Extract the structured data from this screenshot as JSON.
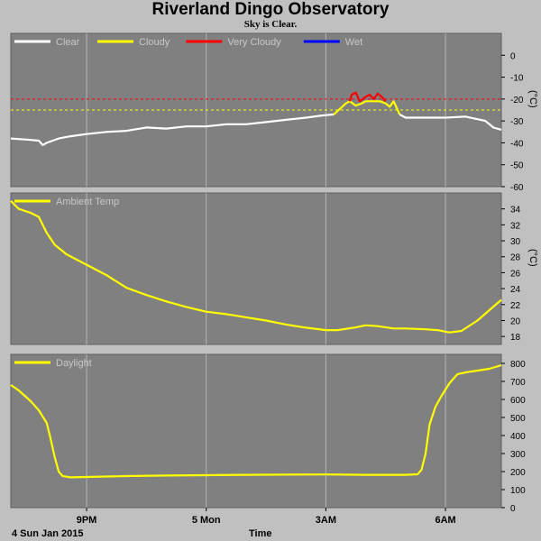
{
  "header": {
    "title": "Riverland Dingo Observatory",
    "status": "Sky is Clear."
  },
  "footer": {
    "date_label": "4 Sun Jan 2015",
    "time_label": "Time"
  },
  "colors": {
    "background": "#c0c0c0",
    "panel": "#808080",
    "grid": "#b4b4b4",
    "clear": "#ffffff",
    "cloudy": "#ffff00",
    "very_cloudy": "#ff0000",
    "wet": "#0000ff",
    "ambient": "#ffff00",
    "daylight": "#ffff00"
  },
  "chart_data": [
    {
      "type": "line",
      "name": "sky-temperature",
      "x_unit": "hours since 19:00",
      "x_ticks": [
        {
          "x": 2,
          "label": "9PM"
        },
        {
          "x": 5,
          "label": "5 Mon"
        },
        {
          "x": 8,
          "label": "3AM"
        },
        {
          "x": 11,
          "label": "6AM"
        }
      ],
      "xlim": [
        0.1,
        12.4
      ],
      "ylim": [
        -60,
        10
      ],
      "y_ticks": [
        0,
        -10,
        -20,
        -30,
        -40,
        -50,
        -60
      ],
      "ylabel": "(°C)",
      "threshold_lines": [
        {
          "value": -20,
          "color": "#ff0000"
        },
        {
          "value": -25,
          "color": "#ffff00"
        }
      ],
      "legend": [
        {
          "label": "Clear",
          "color": "#ffffff"
        },
        {
          "label": "Cloudy",
          "color": "#ffff00"
        },
        {
          "label": "Very Cloudy",
          "color": "#ff0000"
        },
        {
          "label": "Wet",
          "color": "#0000ff"
        }
      ],
      "series": [
        {
          "name": "Clear",
          "color": "#ffffff",
          "points": [
            [
              0.1,
              -38
            ],
            [
              0.5,
              -38.5
            ],
            [
              0.8,
              -39
            ],
            [
              0.9,
              -41
            ],
            [
              1.0,
              -40
            ],
            [
              1.3,
              -38
            ],
            [
              1.6,
              -37
            ],
            [
              2,
              -36
            ],
            [
              2.5,
              -35
            ],
            [
              3,
              -34.5
            ],
            [
              3.5,
              -33
            ],
            [
              4,
              -33.5
            ],
            [
              4.5,
              -32.5
            ],
            [
              5,
              -32.5
            ],
            [
              5.5,
              -31.5
            ],
            [
              6,
              -31.5
            ],
            [
              6.5,
              -30.5
            ],
            [
              7,
              -29.5
            ],
            [
              7.5,
              -28.5
            ],
            [
              7.9,
              -27.5
            ],
            [
              8.2,
              -27
            ]
          ]
        },
        {
          "name": "Cloudy",
          "color": "#ffff00",
          "points": [
            [
              8.2,
              -27
            ],
            [
              8.5,
              -22
            ],
            [
              8.6,
              -21
            ],
            [
              8.75,
              -23
            ],
            [
              8.9,
              -22
            ],
            [
              9.0,
              -21
            ],
            [
              9.35,
              -21
            ],
            [
              9.5,
              -22
            ],
            [
              9.6,
              -23.5
            ],
            [
              9.7,
              -21
            ],
            [
              9.85,
              -27
            ]
          ]
        },
        {
          "name": "Very Cloudy",
          "color": "#ff0000",
          "points": [
            [
              8.6,
              -21
            ],
            [
              8.65,
              -18
            ],
            [
              8.75,
              -17
            ],
            [
              8.85,
              -21
            ],
            [
              9.0,
              -19
            ],
            [
              9.1,
              -18
            ],
            [
              9.2,
              -20
            ],
            [
              9.3,
              -17.5
            ],
            [
              9.4,
              -19
            ],
            [
              9.5,
              -21
            ]
          ]
        },
        {
          "name": "Clear after",
          "color": "#ffffff",
          "points": [
            [
              9.85,
              -27
            ],
            [
              10,
              -28.5
            ],
            [
              10.5,
              -28.5
            ],
            [
              11,
              -28.5
            ],
            [
              11.5,
              -28
            ],
            [
              12,
              -30
            ],
            [
              12.2,
              -33
            ],
            [
              12.4,
              -34
            ]
          ]
        }
      ]
    },
    {
      "type": "line",
      "name": "ambient-temperature",
      "xlim": [
        0.1,
        12.4
      ],
      "ylim": [
        17,
        36
      ],
      "y_ticks": [
        34,
        32,
        30,
        28,
        26,
        24,
        22,
        20,
        18
      ],
      "ylabel": "(°C)",
      "legend": [
        {
          "label": "Ambient Temp",
          "color": "#ffff00"
        }
      ],
      "series": [
        {
          "name": "Ambient Temp",
          "color": "#ffff00",
          "points": [
            [
              0.1,
              35
            ],
            [
              0.3,
              34
            ],
            [
              0.6,
              33.5
            ],
            [
              0.8,
              33
            ],
            [
              1.0,
              31
            ],
            [
              1.2,
              29.5
            ],
            [
              1.5,
              28.3
            ],
            [
              2,
              27
            ],
            [
              2.5,
              25.7
            ],
            [
              3,
              24.1
            ],
            [
              3.5,
              23.2
            ],
            [
              4,
              22.4
            ],
            [
              4.5,
              21.7
            ],
            [
              5,
              21.1
            ],
            [
              5.5,
              20.8
            ],
            [
              6,
              20.4
            ],
            [
              6.5,
              20
            ],
            [
              7,
              19.5
            ],
            [
              7.5,
              19.1
            ],
            [
              8,
              18.8
            ],
            [
              8.3,
              18.8
            ],
            [
              8.7,
              19.1
            ],
            [
              9,
              19.4
            ],
            [
              9.3,
              19.3
            ],
            [
              9.7,
              19
            ],
            [
              10,
              19
            ],
            [
              10.5,
              18.9
            ],
            [
              10.8,
              18.8
            ],
            [
              11.1,
              18.5
            ],
            [
              11.4,
              18.7
            ],
            [
              11.8,
              20
            ],
            [
              12.1,
              21.3
            ],
            [
              12.4,
              22.6
            ]
          ]
        }
      ]
    },
    {
      "type": "line",
      "name": "daylight",
      "xlim": [
        0.1,
        12.4
      ],
      "ylim": [
        0,
        850
      ],
      "y_ticks": [
        800,
        700,
        600,
        500,
        400,
        300,
        200,
        100,
        0
      ],
      "legend": [
        {
          "label": "Daylight",
          "color": "#ffff00"
        }
      ],
      "series": [
        {
          "name": "Daylight",
          "color": "#ffff00",
          "points": [
            [
              0.1,
              680
            ],
            [
              0.3,
              650
            ],
            [
              0.6,
              590
            ],
            [
              0.8,
              540
            ],
            [
              1.0,
              470
            ],
            [
              1.1,
              380
            ],
            [
              1.2,
              280
            ],
            [
              1.3,
              200
            ],
            [
              1.4,
              175
            ],
            [
              1.6,
              168
            ],
            [
              2,
              170
            ],
            [
              3,
              175
            ],
            [
              4,
              178
            ],
            [
              5,
              180
            ],
            [
              6,
              182
            ],
            [
              7,
              183
            ],
            [
              8,
              184
            ],
            [
              9,
              182
            ],
            [
              10,
              182
            ],
            [
              10.3,
              185
            ],
            [
              10.4,
              210
            ],
            [
              10.5,
              300
            ],
            [
              10.6,
              460
            ],
            [
              10.75,
              560
            ],
            [
              10.9,
              620
            ],
            [
              11.1,
              690
            ],
            [
              11.3,
              740
            ],
            [
              11.5,
              750
            ],
            [
              11.8,
              760
            ],
            [
              12.1,
              770
            ],
            [
              12.4,
              790
            ]
          ]
        }
      ]
    }
  ]
}
